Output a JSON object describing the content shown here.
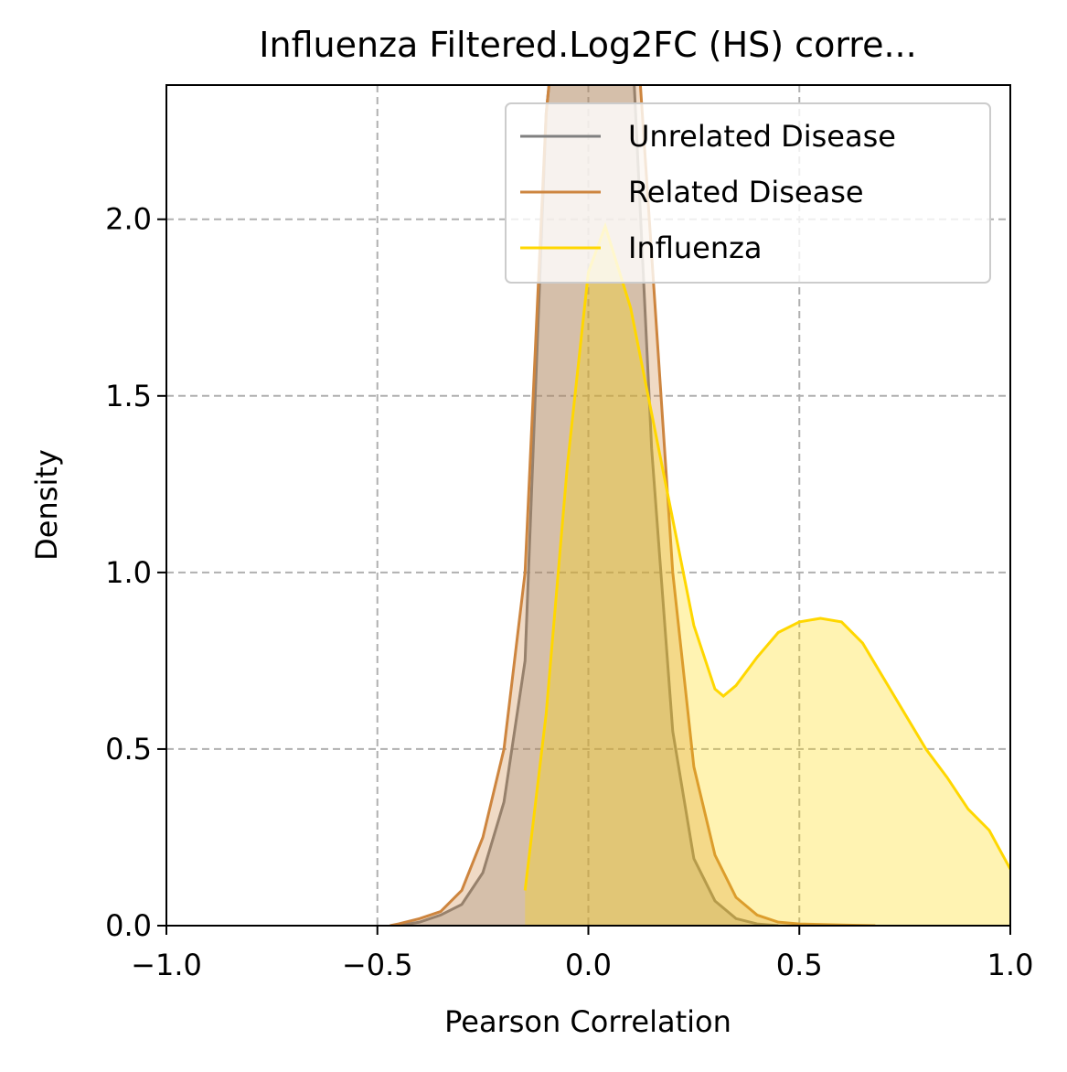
{
  "chart_data": {
    "type": "density",
    "title": "Influenza Filtered.Log2FC (HS) corre...",
    "xlabel": "Pearson Correlation",
    "ylabel": "Density",
    "xlim": [
      -1,
      1
    ],
    "ylim": [
      0,
      2.38
    ],
    "xticks": [
      {
        "value": -1,
        "label": "−1.0"
      },
      {
        "value": -0.5,
        "label": "−0.5"
      },
      {
        "value": 0,
        "label": "0.0"
      },
      0.5,
      {
        "value": 1,
        "label": "1.0"
      }
    ],
    "yticks": [
      {
        "value": 0,
        "label": "0.0"
      },
      0.5,
      {
        "value": 1,
        "label": "1.0"
      },
      1.5,
      {
        "value": 2,
        "label": "2.0"
      }
    ],
    "grid": true,
    "legend": "upper right",
    "series": [
      {
        "name": "Unrelated Disease",
        "color": "#808080",
        "x": [
          -0.45,
          -0.4,
          -0.35,
          -0.3,
          -0.25,
          -0.2,
          -0.15,
          -0.1,
          -0.05,
          0,
          0.05,
          0.1,
          0.15,
          0.2,
          0.25,
          0.3,
          0.35,
          0.4,
          0.45
        ],
        "values": [
          0,
          0.01,
          0.03,
          0.06,
          0.15,
          0.35,
          0.75,
          2.3,
          2.9,
          3.1,
          3.1,
          2.6,
          1.35,
          0.55,
          0.19,
          0.07,
          0.02,
          0.005,
          0
        ]
      },
      {
        "name": "Related Disease",
        "color": "#cd853f",
        "x": [
          -0.47,
          -0.45,
          -0.4,
          -0.35,
          -0.3,
          -0.25,
          -0.2,
          -0.15,
          -0.1,
          -0.05,
          0,
          0.05,
          0.1,
          0.15,
          0.2,
          0.25,
          0.3,
          0.35,
          0.4,
          0.45,
          0.5,
          0.6,
          0.68
        ],
        "values": [
          0,
          0.005,
          0.02,
          0.04,
          0.1,
          0.25,
          0.5,
          1.0,
          2.3,
          2.9,
          3.2,
          3.2,
          2.8,
          1.9,
          1.0,
          0.45,
          0.2,
          0.08,
          0.03,
          0.01,
          0.005,
          0.002,
          0
        ]
      },
      {
        "name": "Influenza",
        "color": "#ffd700",
        "x": [
          -0.15,
          -0.1,
          -0.05,
          0,
          0.04,
          0.1,
          0.15,
          0.2,
          0.25,
          0.3,
          0.32,
          0.35,
          0.4,
          0.45,
          0.5,
          0.55,
          0.6,
          0.65,
          0.7,
          0.75,
          0.8,
          0.85,
          0.9,
          0.95,
          1.0
        ],
        "values": [
          0.1,
          0.6,
          1.3,
          1.85,
          1.98,
          1.75,
          1.45,
          1.15,
          0.85,
          0.67,
          0.65,
          0.68,
          0.76,
          0.83,
          0.86,
          0.87,
          0.86,
          0.8,
          0.7,
          0.6,
          0.5,
          0.42,
          0.33,
          0.27,
          0.16
        ]
      }
    ]
  }
}
